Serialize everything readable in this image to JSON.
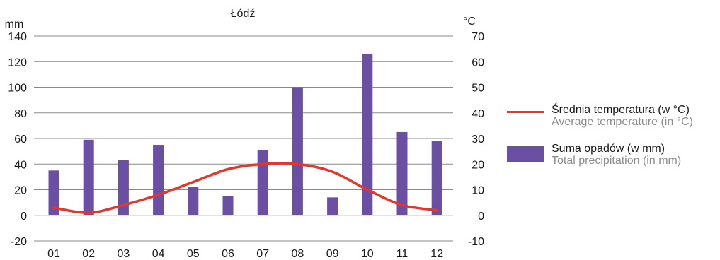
{
  "chart_data": {
    "type": "bar",
    "title": "Łódź",
    "categories": [
      "01",
      "02",
      "03",
      "04",
      "05",
      "06",
      "07",
      "08",
      "09",
      "10",
      "11",
      "12"
    ],
    "left_axis": {
      "unit": "mm",
      "ticks": [
        -20,
        0,
        20,
        40,
        60,
        80,
        100,
        120,
        140
      ],
      "range": [
        -20,
        140
      ]
    },
    "right_axis": {
      "unit": "°C",
      "ticks": [
        -10,
        0,
        10,
        20,
        30,
        40,
        50,
        60,
        70
      ],
      "range": [
        -10,
        70
      ]
    },
    "series": [
      {
        "name": "Suma opadów (w mm)",
        "name_en": "Total precipitation (in mm)",
        "kind": "bar",
        "axis": "left",
        "color": "#6a4fa3",
        "values": [
          35,
          59,
          43,
          55,
          22,
          15,
          51,
          100,
          14,
          126,
          65,
          58
        ]
      },
      {
        "name": "Średnia temperatura (w °C)",
        "name_en": "Average temperature (in °C)",
        "kind": "line",
        "axis": "right",
        "color": "#e8352b",
        "values": [
          3,
          1,
          4,
          8,
          13,
          18,
          20,
          20,
          17,
          10,
          4,
          2
        ]
      }
    ],
    "grid": true,
    "legend_position": "right"
  }
}
